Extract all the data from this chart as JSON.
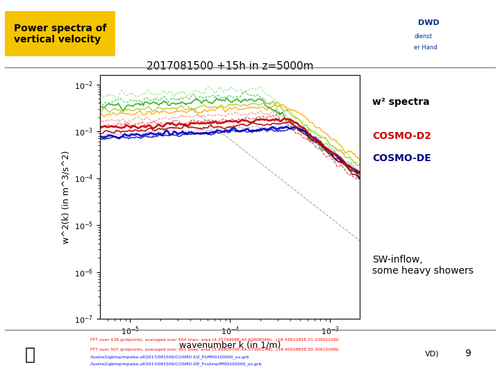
{
  "title": "2017081500 +15h in z=5000m",
  "xlabel": "wavenumber k (in 1/m)",
  "ylabel": "w^2(k) (in m^3/s^2)",
  "xlim_log": [
    -5.3,
    -2.7
  ],
  "ylim_log": [
    -7,
    -1.8
  ],
  "header_text": "Power spectra of\nvertical velocity",
  "header_bg": "#F5C400",
  "legend_text1": "w² spectra",
  "legend_text2": "COSMO-D2",
  "legend_text3": "COSMO-DE",
  "legend_color2": "#CC0000",
  "legend_color3": "#000080",
  "side_note": "SW-inflow,\nsome heavy showers",
  "footer_red1": "FFT over 438 gridpoints, averaged over 504 lines: area (4.2579998E,45.6080856N)...(18.4383295E,51.3380102N)",
  "footer_red2": "FFT over 507 gridpoints, averaged over 401 lines: area (3.9990074E,44.5730014N)...(18.4092865E,50.3067200N)",
  "footer_blue1": "/lustre2/gbmp/mpalsa.uf/2017/081500/COSMO-D2_P1fff00150000_uv.grb",
  "footer_blue2": "/lustre2/gbmp/mpalsa.uf/2017/081500/COSMO-DE_Fcutine/fff00150000_uv.grb",
  "page_num": "9",
  "page_label": "VD)",
  "green_amps": [
    0.008,
    0.006,
    0.005,
    0.004,
    0.0035
  ],
  "green_peaks": [
    0.0002,
    0.0002,
    0.0002,
    0.0003,
    0.0004
  ],
  "green_noises": [
    0.2,
    0.18,
    0.15,
    0.15,
    0.12
  ],
  "green_colors": [
    "#88EE88",
    "#44CC44",
    "#22AA22",
    "#AACC22",
    "#FFAA00"
  ],
  "green_ls": [
    "--",
    "--",
    "-",
    "-",
    "-"
  ],
  "green_lw": [
    0.8,
    0.8,
    1.2,
    1.0,
    1.0
  ],
  "de_amps": [
    0.0013,
    0.0012,
    0.0011
  ],
  "de_peaks": [
    0.0005,
    0.0005,
    0.0005
  ],
  "de_noises": [
    0.12,
    0.1,
    0.1
  ],
  "de_colors": [
    "#88AAFF",
    "#0000CC",
    "#000099"
  ],
  "de_ls": [
    "--",
    "-",
    "-"
  ],
  "de_lw": [
    0.8,
    2.0,
    1.0
  ],
  "d2_amps": [
    0.0025,
    0.002,
    0.0018,
    0.0015
  ],
  "d2_peaks": [
    0.0003,
    0.0003,
    0.0004,
    0.0004
  ],
  "d2_noises": [
    0.15,
    0.12,
    0.1,
    0.1
  ],
  "d2_colors": [
    "#FF8888",
    "#CC3333",
    "#CC0000",
    "#AA0000"
  ],
  "d2_ls": [
    "--",
    "--",
    "-",
    "-"
  ],
  "d2_lw": [
    0.8,
    0.8,
    2.0,
    1.2
  ]
}
